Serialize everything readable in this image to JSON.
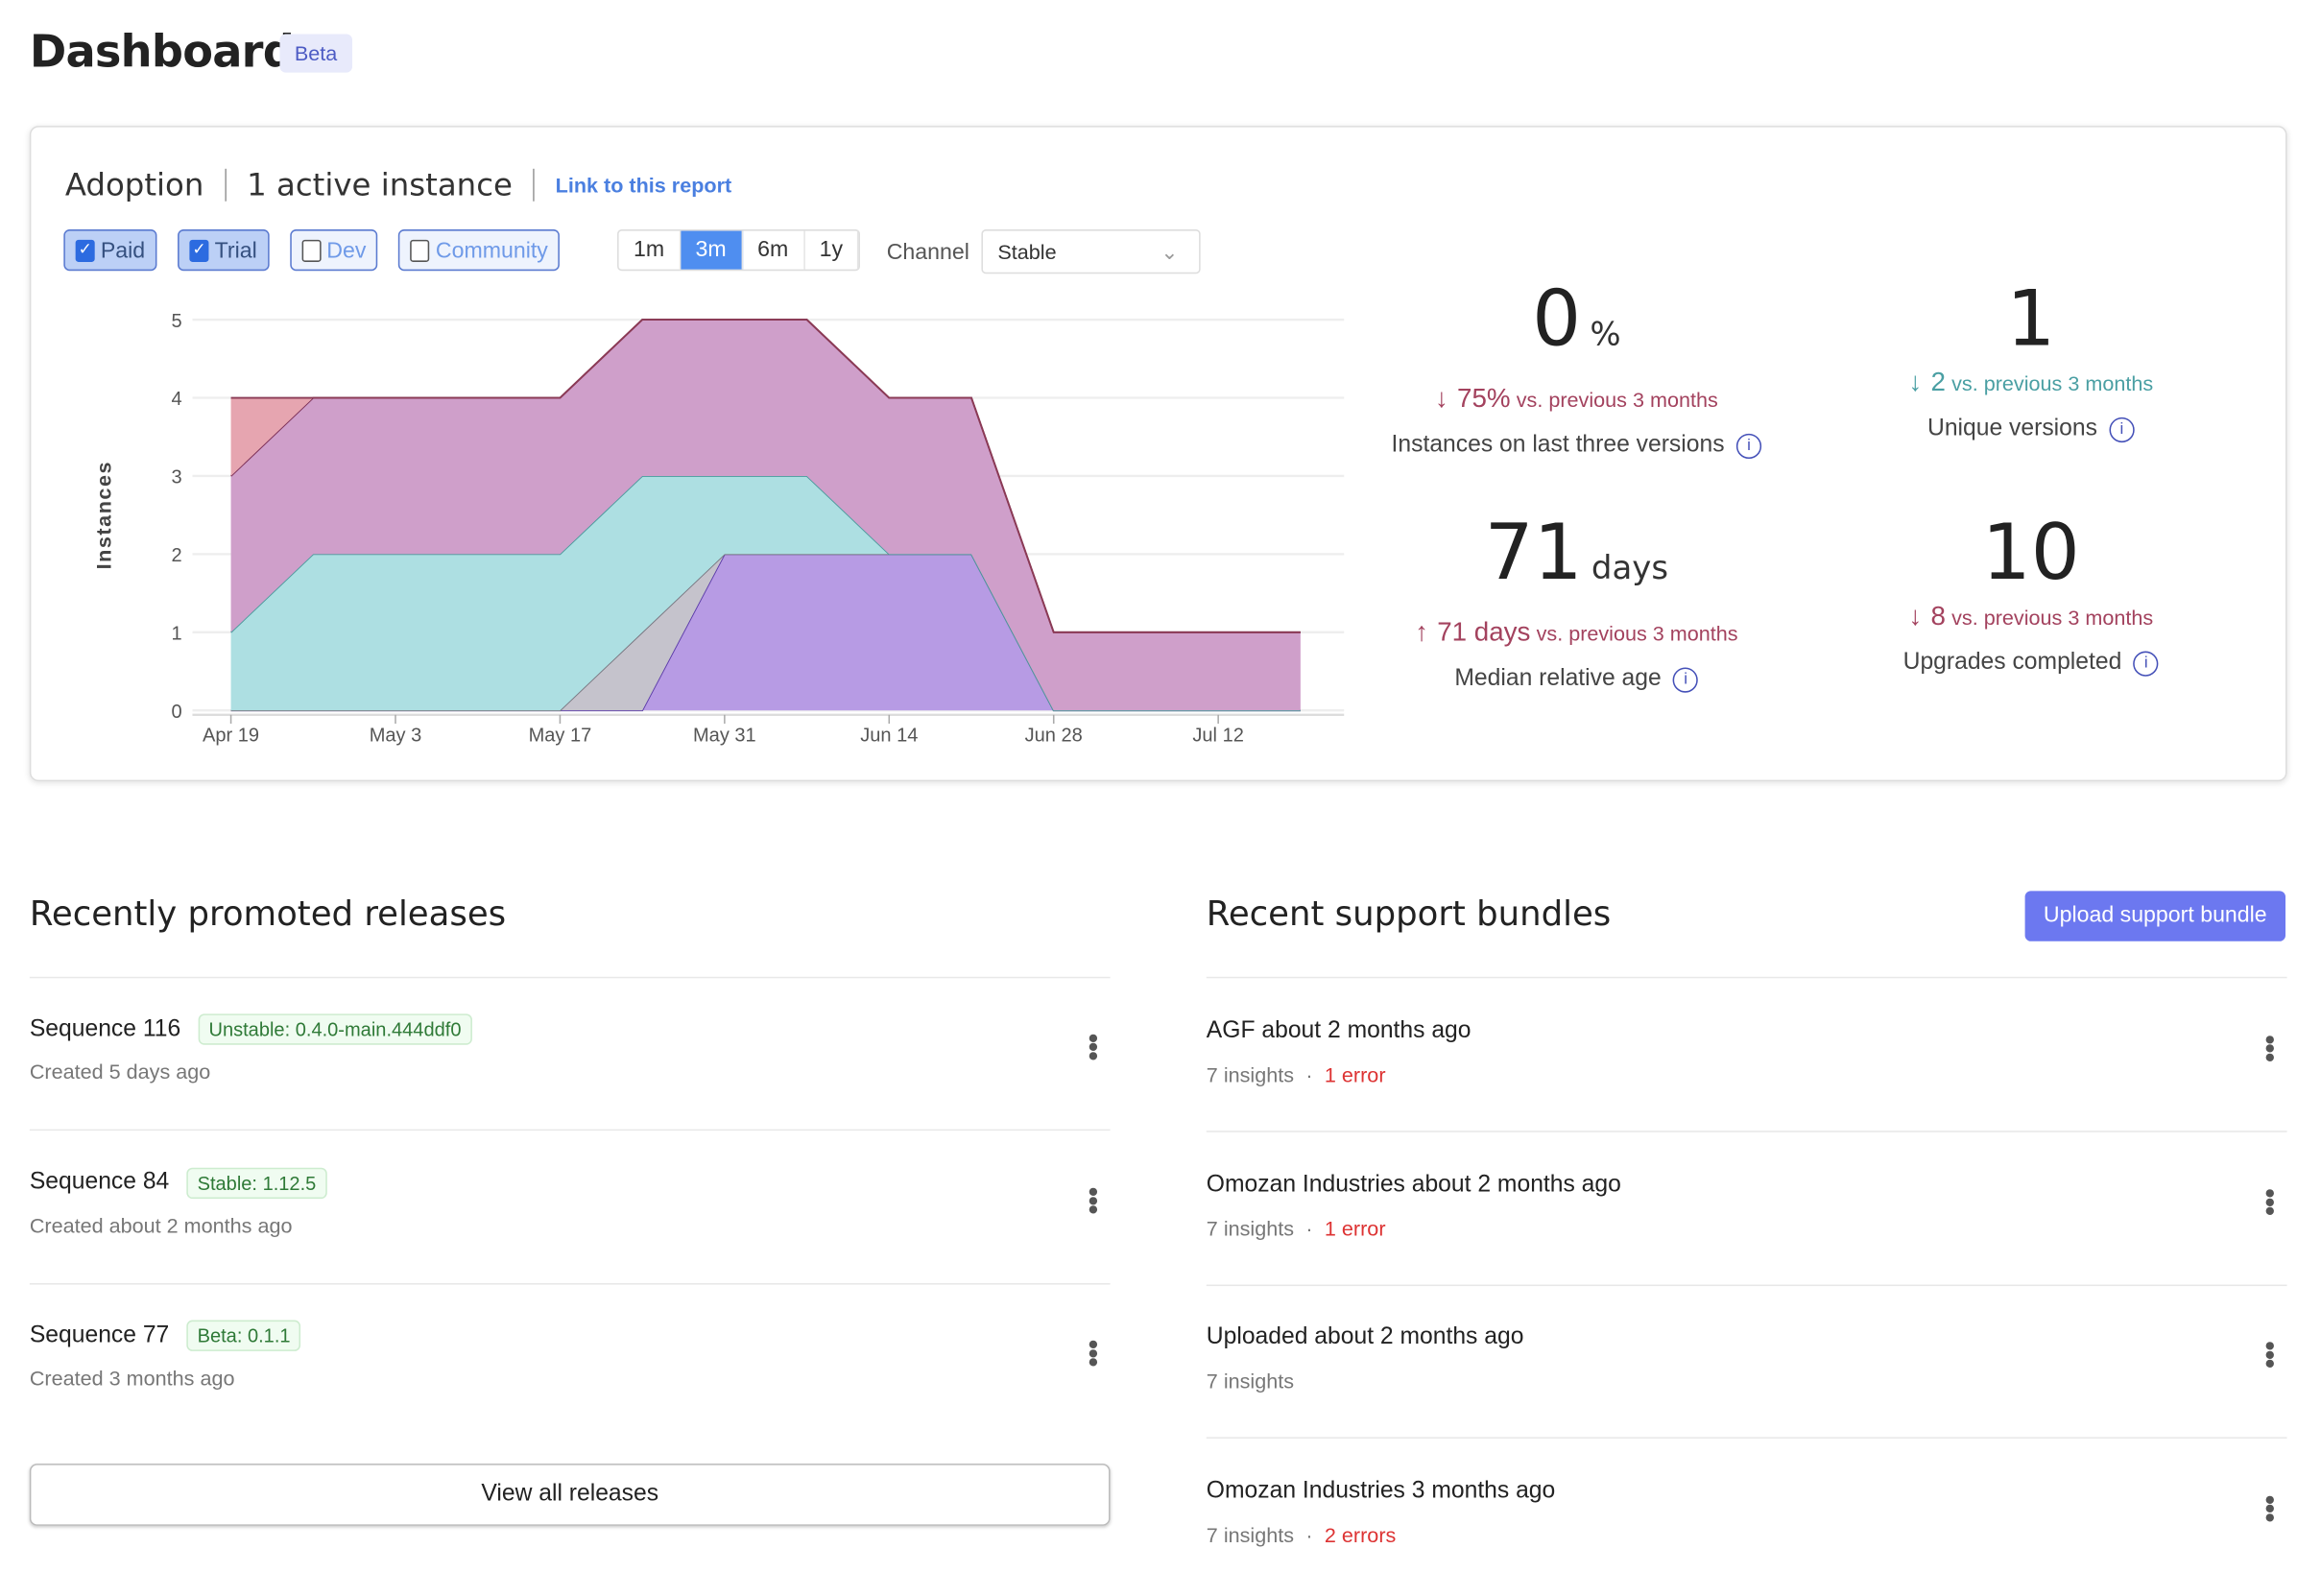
{
  "header": {
    "title": "Dashboard",
    "badge": "Beta"
  },
  "adoption": {
    "title": "Adoption",
    "active": "1 active instance",
    "link": "Link to this report",
    "filters": [
      {
        "label": "Paid",
        "checked": true
      },
      {
        "label": "Trial",
        "checked": true
      },
      {
        "label": "Dev",
        "checked": false
      },
      {
        "label": "Community",
        "checked": false
      }
    ],
    "ranges": [
      {
        "label": "1m",
        "active": false
      },
      {
        "label": "3m",
        "active": true
      },
      {
        "label": "6m",
        "active": false
      },
      {
        "label": "1y",
        "active": false
      }
    ],
    "channel_label": "Channel",
    "channel_value": "Stable",
    "stats": [
      {
        "value": "0",
        "unit": "%",
        "direction": "down",
        "change": "75%",
        "vs": "vs. previous 3 months",
        "label": "Instances on last three versions",
        "color": "#a3425e"
      },
      {
        "value": "1",
        "unit": "",
        "direction": "down",
        "change": "2",
        "vs": "vs. previous 3 months",
        "label": "Unique versions",
        "color": "#4a9fa3"
      },
      {
        "value": "71",
        "unit": "days",
        "direction": "up",
        "change": "71 days",
        "vs": "vs. previous 3 months",
        "label": "Median relative age",
        "color": "#a3425e"
      },
      {
        "value": "10",
        "unit": "",
        "direction": "down",
        "change": "8",
        "vs": "vs. previous 3 months",
        "label": "Upgrades completed",
        "color": "#a3425e"
      }
    ]
  },
  "chart_data": {
    "type": "area",
    "stacked": true,
    "ylabel": "Instances",
    "ylim": [
      0,
      5
    ],
    "grid": true,
    "yticks": [
      "0",
      "1",
      "2",
      "3",
      "4",
      "5"
    ],
    "x": [
      "Apr 19",
      "Apr 26",
      "May 3",
      "May 10",
      "May 17",
      "May 24",
      "May 31",
      "Jun 7",
      "Jun 14",
      "Jun 21",
      "Jun 28",
      "Jul 5",
      "Jul 12",
      "Jul 19"
    ],
    "xticks": [
      "Apr 19",
      "May 3",
      "May 17",
      "May 31",
      "Jun 14",
      "Jun 28",
      "Jul 12"
    ],
    "series": [
      {
        "values": [
          0,
          0,
          0,
          0,
          0,
          0,
          2,
          2,
          2,
          2,
          0,
          0,
          0,
          0
        ],
        "fill": "#b79be4",
        "line": "#5a3aa8"
      },
      {
        "values": [
          0,
          0,
          0,
          0,
          0,
          1,
          0,
          0,
          0,
          0,
          0,
          0,
          0,
          0
        ],
        "fill": "#c5c3cc",
        "line": "#77757f"
      },
      {
        "values": [
          1,
          2,
          2,
          2,
          2,
          2,
          1,
          1,
          0,
          0,
          0,
          0,
          0,
          0
        ],
        "fill": "#addfe2",
        "line": "#4a9a9c"
      },
      {
        "values": [
          2,
          2,
          2,
          2,
          2,
          2,
          2,
          2,
          2,
          2,
          1,
          1,
          1,
          1
        ],
        "fill": "#cf9fca",
        "line": "#7a2d55"
      },
      {
        "values": [
          1,
          0,
          0,
          0,
          0,
          0,
          0,
          0,
          0,
          0,
          0,
          0,
          0,
          0
        ],
        "fill": "#e6a5b0",
        "line": "#8b3a55"
      }
    ]
  },
  "releases": {
    "title": "Recently promoted releases",
    "items": [
      {
        "name": "Sequence 116",
        "tag": "Unstable: 0.4.0-main.444ddf0",
        "created": "Created 5 days ago"
      },
      {
        "name": "Sequence 84",
        "tag": "Stable: 1.12.5",
        "created": "Created about 2 months ago"
      },
      {
        "name": "Sequence 77",
        "tag": "Beta: 0.1.1",
        "created": "Created 3 months ago"
      }
    ],
    "view_all": "View all releases"
  },
  "bundles": {
    "title": "Recent support bundles",
    "upload": "Upload support bundle",
    "items": [
      {
        "name": "AGF about 2 months ago",
        "insights": "7 insights",
        "errors": "1 error"
      },
      {
        "name": "Omozan Industries about 2 months ago",
        "insights": "7 insights",
        "errors": "1 error"
      },
      {
        "name": "Uploaded about 2 months ago",
        "insights": "7 insights",
        "errors": ""
      },
      {
        "name": "Omozan Industries 3 months ago",
        "insights": "7 insights",
        "errors": "2 errors"
      }
    ]
  }
}
